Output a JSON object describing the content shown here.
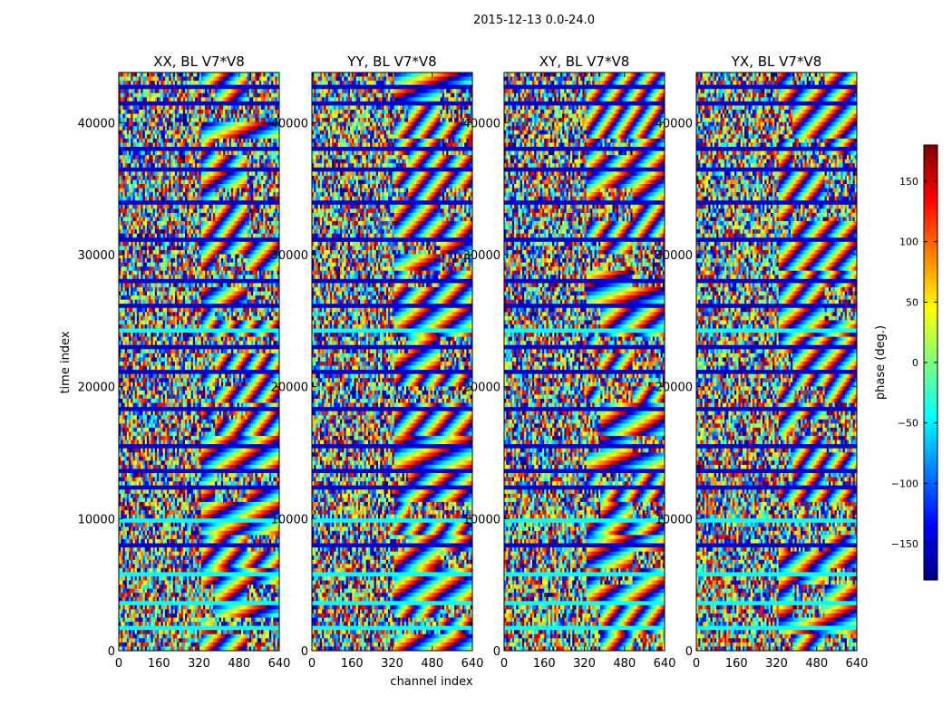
{
  "figure": {
    "suptitle": "2015-12-13 0.0-24.0"
  },
  "chart_data": {
    "type": "heatmap",
    "xlabel": "channel index",
    "ylabel": "time index",
    "xlim": [
      0,
      640
    ],
    "ylim": [
      0,
      43800
    ],
    "x_ticks": [
      0,
      160,
      320,
      480,
      640
    ],
    "y_ticks": [
      0,
      10000,
      20000,
      30000,
      40000
    ],
    "panels": [
      {
        "title": "XX, BL V7*V8"
      },
      {
        "title": "YY, BL V7*V8"
      },
      {
        "title": "XY, BL V7*V8"
      },
      {
        "title": "YX, BL V7*V8"
      }
    ],
    "colorbar": {
      "label": "phase (deg.)",
      "range": [
        -180,
        180
      ],
      "ticks": [
        -150,
        -100,
        -50,
        0,
        50,
        100,
        150
      ],
      "tick_labels": [
        "−150",
        "−100",
        "−50",
        "0",
        "50",
        "100",
        "150"
      ],
      "colormap": "jet",
      "colors": [
        "#00007f",
        "#0000ff",
        "#007fff",
        "#00ffff",
        "#7fff7f",
        "#ffff00",
        "#ff7f00",
        "#ff0000",
        "#7f0000"
      ]
    }
  }
}
